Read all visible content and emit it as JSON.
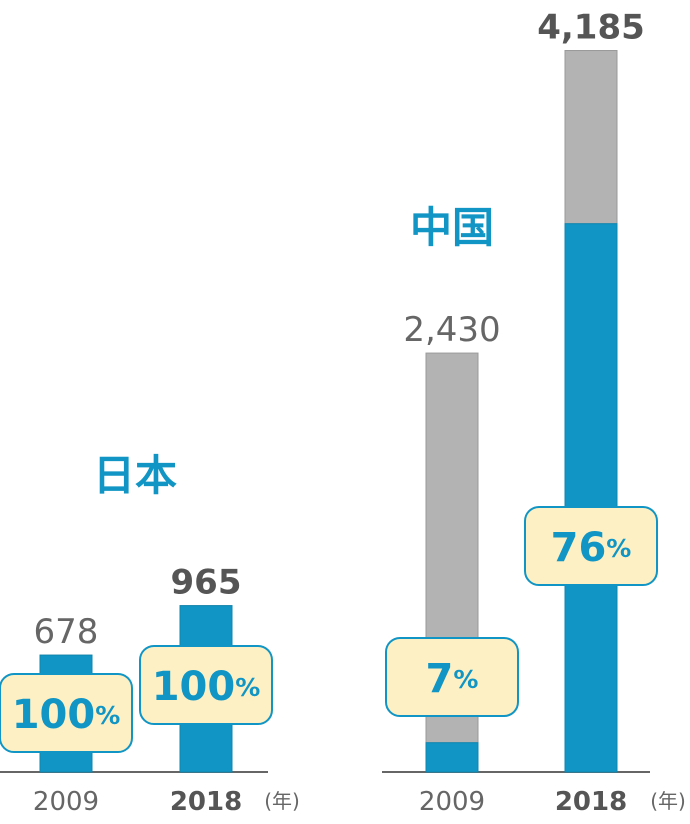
{
  "chart_data": [
    {
      "type": "bar",
      "title": "日本",
      "categories": [
        "2009",
        "2018"
      ],
      "category_bold": [
        false,
        true
      ],
      "values": [
        678,
        965
      ],
      "value_labels": [
        "678",
        "965"
      ],
      "share_labels": [
        "100%",
        "100%"
      ],
      "share_values": [
        100,
        100
      ],
      "unit": "(年)",
      "colors": {
        "share": "#1195c4",
        "rest": "#b3b3b3",
        "badge_fill": "#fdf0c4",
        "badge_border": "#1195c4",
        "title": "#1195c4"
      }
    },
    {
      "type": "bar",
      "title": "中国",
      "categories": [
        "2009",
        "2018"
      ],
      "category_bold": [
        false,
        true
      ],
      "values": [
        2430,
        4185
      ],
      "value_labels": [
        "2,430",
        "4,185"
      ],
      "share_labels": [
        "7%",
        "76%"
      ],
      "share_values": [
        7,
        76
      ],
      "unit": "(年)",
      "colors": {
        "share": "#1195c4",
        "rest": "#b3b3b3",
        "badge_fill": "#fdf0c4",
        "badge_border": "#1195c4",
        "title": "#1195c4"
      }
    }
  ]
}
